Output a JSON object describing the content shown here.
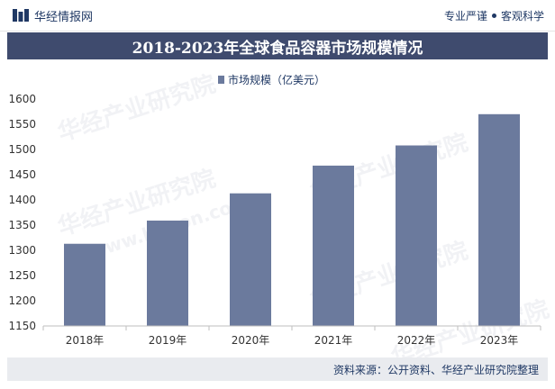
{
  "header": {
    "brand_name": "华经情报网",
    "slogan_left": "专业严谨",
    "slogan_right": "客观科学"
  },
  "footer": {
    "source": "资料来源：公开资料、华经产业研究院整理"
  },
  "watermark": {
    "text": "华经产业研究院",
    "url": "www.huaon.com"
  },
  "colors": {
    "bar": "#6b7a9d",
    "title_bg": "#3f4b6e",
    "text": "#1f3864"
  },
  "chart_data": {
    "type": "bar",
    "title": "2018-2023年全球食品容器市场规模情况",
    "categories": [
      "2018年",
      "2019年",
      "2020年",
      "2021年",
      "2022年",
      "2023年"
    ],
    "series": [
      {
        "name": "市场规模（亿美元）",
        "values": [
          1313,
          1359,
          1413,
          1468,
          1508,
          1570
        ]
      }
    ],
    "ylim": [
      1150,
      1600
    ],
    "yticks": [
      "1150",
      "1200",
      "1250",
      "1300",
      "1350",
      "1400",
      "1450",
      "1500",
      "1550",
      "1600"
    ],
    "xlabel": "",
    "ylabel": "",
    "legend": "top-center"
  }
}
